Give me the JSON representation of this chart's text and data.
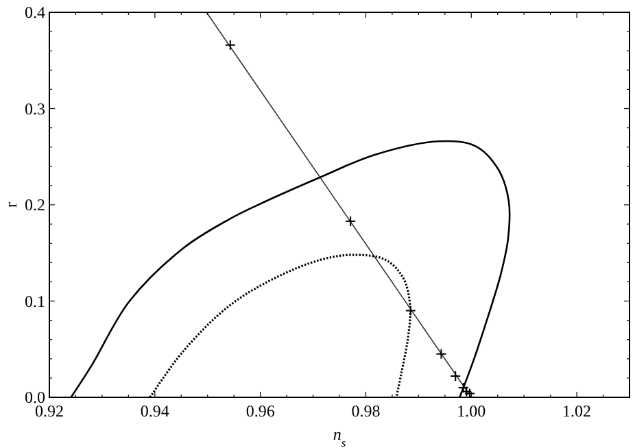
{
  "chart_data": {
    "type": "line",
    "xlabel": "n$_{s}$",
    "ylabel": "r",
    "xlim": [
      0.92,
      1.03
    ],
    "ylim": [
      0,
      0.4
    ],
    "xticks": [
      0.92,
      0.94,
      0.96,
      0.98,
      {
        "value": 1.0,
        "label": "1.00"
      },
      1.02
    ],
    "yticks": [
      {
        "value": 0,
        "label": "0.0"
      },
      0.1,
      0.2,
      0.3,
      0.4
    ],
    "grid": false,
    "series": [
      {
        "color": "#000000",
        "line_style": "solid",
        "marker": "none",
        "x": [
          0.9241,
          0.928,
          0.9352,
          0.9454,
          0.9541,
          0.9592,
          0.9715,
          0.9817,
          0.9939,
          1.0008,
          1.0051,
          1.0071,
          1.007,
          1.0056,
          1.003,
          1.0004,
          0.9978
        ],
        "values": [
          0,
          0.033,
          0.1,
          0.155,
          0.185,
          0.199,
          0.229,
          0.252,
          0.266,
          0.261,
          0.237,
          0.204,
          0.166,
          0.128,
          0.081,
          0.038,
          0
        ]
      },
      {
        "color": "#000000",
        "line_style": "dotted",
        "marker": "none",
        "x": [
          0.9391,
          0.9454,
          0.9541,
          0.9628,
          0.9715,
          0.9776,
          0.9837,
          0.9871,
          0.9884,
          0.988,
          0.9867,
          0.9858
        ],
        "values": [
          0,
          0.048,
          0.095,
          0.124,
          0.143,
          0.148,
          0.143,
          0.124,
          0.095,
          0.062,
          0.024,
          0
        ]
      },
      {
        "color": "#333333",
        "line_style": "solid",
        "marker": "none",
        "x": [
          0.9498,
          1.0
        ],
        "values": [
          0.4,
          0
        ]
      },
      {
        "type": "scatter",
        "color": "#000000",
        "marker": "cross",
        "x": [
          0.9543,
          0.9771,
          0.9885,
          0.9943,
          0.997,
          0.9985,
          0.9991,
          0.9997
        ],
        "values": [
          0.366,
          0.183,
          0.09,
          0.045,
          0.022,
          0.01,
          0.006,
          0.004
        ]
      }
    ]
  }
}
